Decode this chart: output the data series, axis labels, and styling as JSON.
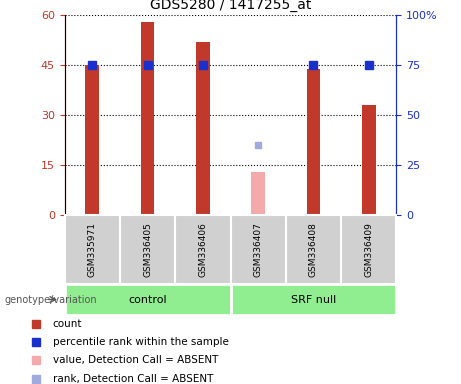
{
  "title": "GDS5280 / 1417255_at",
  "samples": [
    "GSM335971",
    "GSM336405",
    "GSM336406",
    "GSM336407",
    "GSM336408",
    "GSM336409"
  ],
  "count_values": [
    45,
    58,
    52,
    null,
    44,
    33
  ],
  "count_absent": [
    null,
    null,
    null,
    13,
    null,
    null
  ],
  "rank_values": [
    75,
    75,
    75,
    null,
    75,
    75
  ],
  "rank_absent": [
    null,
    null,
    null,
    35,
    null,
    null
  ],
  "bar_color": "#C0392B",
  "bar_absent_color": "#F4AAAA",
  "rank_color": "#1930CC",
  "rank_absent_color": "#A0AADD",
  "left_ylim": [
    0,
    60
  ],
  "right_ylim": [
    0,
    100
  ],
  "left_yticks": [
    0,
    15,
    30,
    45,
    60
  ],
  "right_yticks": [
    0,
    25,
    50,
    75,
    100
  ],
  "right_yticklabels": [
    "0",
    "25",
    "50",
    "75",
    "100%"
  ],
  "group_label": "genotype/variation",
  "group_control_label": "control",
  "group_srf_label": "SRF null",
  "group_color": "#90EE90",
  "sample_box_color": "#D0D0D0",
  "legend_items": [
    {
      "label": "count",
      "color": "#C0392B"
    },
    {
      "label": "percentile rank within the sample",
      "color": "#1930CC"
    },
    {
      "label": "value, Detection Call = ABSENT",
      "color": "#F4AAAA"
    },
    {
      "label": "rank, Detection Call = ABSENT",
      "color": "#A0AADD"
    }
  ],
  "bar_width": 0.25,
  "figsize": [
    4.61,
    3.84
  ],
  "dpi": 100
}
